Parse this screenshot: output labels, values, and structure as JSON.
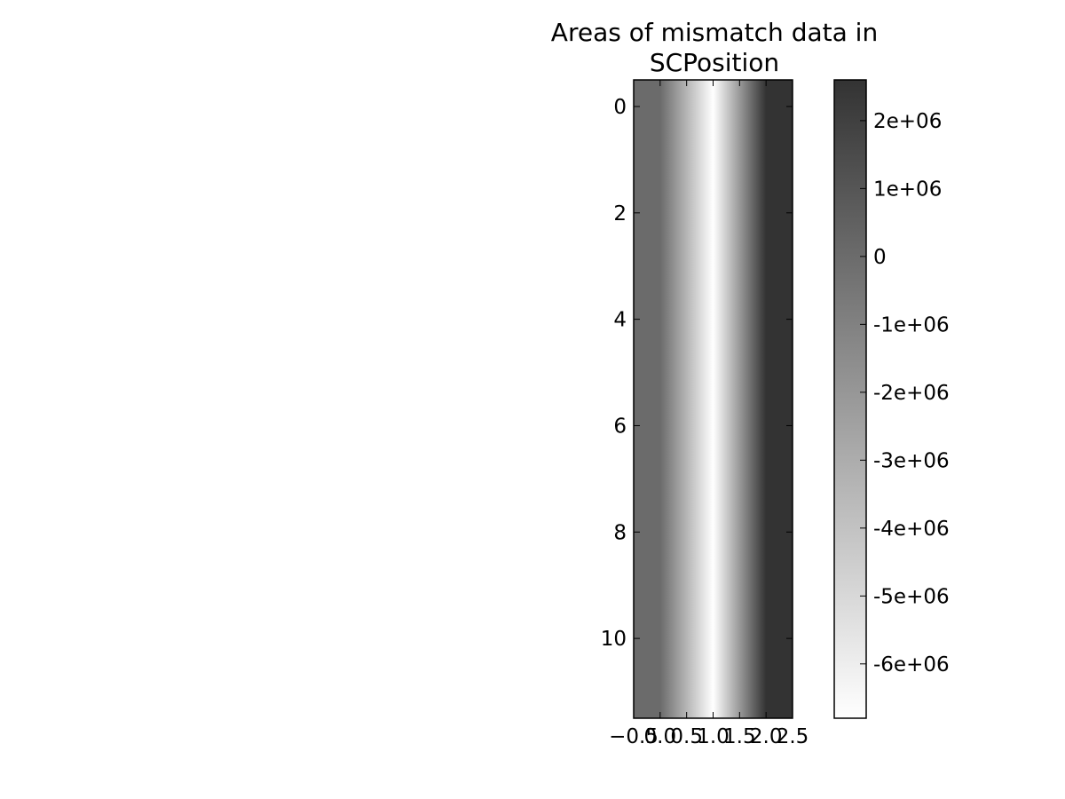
{
  "chart_data": {
    "type": "heatmap",
    "title_lines": [
      "Areas of mismatch data in",
      "SCPosition"
    ],
    "colormap": "gray_r",
    "colormap_colors": [
      "#ffffff",
      "#333333"
    ],
    "columns": [
      0,
      1,
      2
    ],
    "rows": [
      0,
      1,
      2,
      3,
      4,
      5,
      6,
      7,
      8,
      9,
      10,
      11
    ],
    "column_values": [
      0,
      -6800000,
      2600000
    ],
    "color_range": [
      -6800000,
      2600000
    ],
    "xlim": [
      -0.5,
      2.5
    ],
    "ylim": [
      11.5,
      -0.5
    ],
    "x_ticks": [
      -0.5,
      0.0,
      0.5,
      1.0,
      1.5,
      2.0,
      2.5
    ],
    "x_tick_labels": [
      "−0.5",
      "0.0",
      "0.5",
      "1.0",
      "1.5",
      "2.0",
      "2.5"
    ],
    "y_ticks": [
      0,
      2,
      4,
      6,
      8,
      10
    ],
    "y_tick_labels": [
      "0",
      "2",
      "4",
      "6",
      "8",
      "10"
    ],
    "colorbar": {
      "ticks": [
        2000000,
        1000000,
        0,
        -1000000,
        -2000000,
        -3000000,
        -4000000,
        -5000000,
        -6000000
      ],
      "tick_labels": [
        "2e+06",
        "1e+06",
        "0",
        "-1e+06",
        "-2e+06",
        "-3e+06",
        "-4e+06",
        "-5e+06",
        "-6e+06"
      ]
    },
    "interpolation": "bilinear",
    "grid": false
  }
}
